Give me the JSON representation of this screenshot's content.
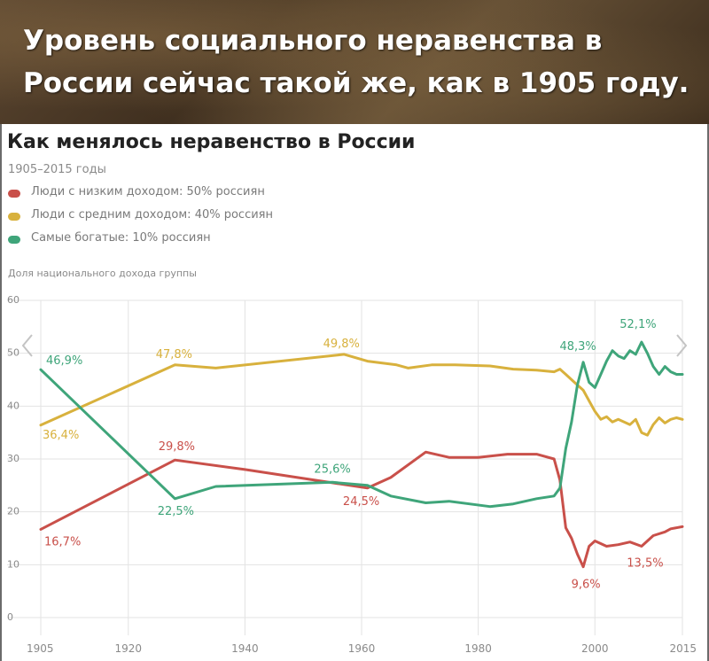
{
  "banner": {
    "line1": "Уровень социального неравенства в",
    "line2": "России сейчас такой же, как в 1905 году."
  },
  "colors": {
    "low_income": "#c9504a",
    "middle_income": "#d8b13d",
    "richest": "#3fa57a",
    "grid": "#e3e3e3",
    "axis_text": "#8a8a8a"
  },
  "chart_data": {
    "type": "line",
    "title": "Как менялось неравенство в России",
    "subtitle": "1905–2015 годы",
    "ylabel": "Доля национального дохода группы",
    "xlim": [
      1905,
      2015
    ],
    "ylim": [
      0,
      60
    ],
    "grid": true,
    "legend_position": "top-left",
    "x_ticks": [
      1905,
      1920,
      1940,
      1960,
      1980,
      2000,
      2015
    ],
    "y_ticks": [
      0,
      10,
      20,
      30,
      40,
      50,
      60
    ],
    "series": [
      {
        "name": "Люди с низким доходом: 50% россиян",
        "color_key": "low_income",
        "points": [
          [
            1905,
            16.7
          ],
          [
            1928,
            29.8
          ],
          [
            1940,
            28.0
          ],
          [
            1955,
            25.5
          ],
          [
            1961,
            24.5
          ],
          [
            1965,
            26.5
          ],
          [
            1971,
            31.3
          ],
          [
            1975,
            30.3
          ],
          [
            1980,
            30.3
          ],
          [
            1985,
            30.9
          ],
          [
            1990,
            30.9
          ],
          [
            1993,
            30.0
          ],
          [
            1994,
            26.0
          ],
          [
            1995,
            17.0
          ],
          [
            1996,
            15.0
          ],
          [
            1997,
            12.0
          ],
          [
            1998,
            9.6
          ],
          [
            1999,
            13.5
          ],
          [
            2000,
            14.5
          ],
          [
            2002,
            13.5
          ],
          [
            2004,
            13.8
          ],
          [
            2006,
            14.3
          ],
          [
            2008,
            13.5
          ],
          [
            2010,
            15.5
          ],
          [
            2012,
            16.2
          ],
          [
            2013,
            16.8
          ],
          [
            2015,
            17.2
          ]
        ]
      },
      {
        "name": "Люди с средним доходом: 40% россиян",
        "color_key": "middle_income",
        "points": [
          [
            1905,
            36.4
          ],
          [
            1928,
            47.8
          ],
          [
            1935,
            47.2
          ],
          [
            1957,
            49.8
          ],
          [
            1961,
            48.5
          ],
          [
            1966,
            47.8
          ],
          [
            1968,
            47.2
          ],
          [
            1972,
            47.8
          ],
          [
            1976,
            47.8
          ],
          [
            1982,
            47.6
          ],
          [
            1986,
            47.0
          ],
          [
            1990,
            46.8
          ],
          [
            1993,
            46.5
          ],
          [
            1994,
            47.0
          ],
          [
            1995,
            46.0
          ],
          [
            1996,
            45.0
          ],
          [
            1997,
            44.0
          ],
          [
            1998,
            43.0
          ],
          [
            1999,
            41.0
          ],
          [
            2000,
            39.0
          ],
          [
            2001,
            37.5
          ],
          [
            2002,
            38.0
          ],
          [
            2003,
            37.0
          ],
          [
            2004,
            37.5
          ],
          [
            2005,
            37.0
          ],
          [
            2006,
            36.5
          ],
          [
            2007,
            37.5
          ],
          [
            2008,
            35.0
          ],
          [
            2009,
            34.5
          ],
          [
            2010,
            36.5
          ],
          [
            2011,
            37.8
          ],
          [
            2012,
            36.8
          ],
          [
            2013,
            37.5
          ],
          [
            2014,
            37.8
          ],
          [
            2015,
            37.5
          ]
        ]
      },
      {
        "name": "Самые богатые: 10% россиян",
        "color_key": "richest",
        "points": [
          [
            1905,
            46.9
          ],
          [
            1928,
            22.5
          ],
          [
            1935,
            24.8
          ],
          [
            1955,
            25.6
          ],
          [
            1961,
            25.0
          ],
          [
            1965,
            23.0
          ],
          [
            1971,
            21.7
          ],
          [
            1975,
            22.0
          ],
          [
            1982,
            21.0
          ],
          [
            1986,
            21.5
          ],
          [
            1990,
            22.5
          ],
          [
            1993,
            23.0
          ],
          [
            1994,
            24.5
          ],
          [
            1995,
            32.0
          ],
          [
            1996,
            37.0
          ],
          [
            1997,
            44.0
          ],
          [
            1998,
            48.3
          ],
          [
            1999,
            44.5
          ],
          [
            2000,
            43.5
          ],
          [
            2001,
            46.0
          ],
          [
            2002,
            48.5
          ],
          [
            2003,
            50.5
          ],
          [
            2004,
            49.5
          ],
          [
            2005,
            49.0
          ],
          [
            2006,
            50.5
          ],
          [
            2007,
            49.8
          ],
          [
            2008,
            52.1
          ],
          [
            2009,
            50.0
          ],
          [
            2010,
            47.5
          ],
          [
            2011,
            46.0
          ],
          [
            2012,
            47.5
          ],
          [
            2013,
            46.5
          ],
          [
            2014,
            46.0
          ],
          [
            2015,
            46.0
          ]
        ]
      }
    ],
    "annotations": [
      {
        "text": "46,9%",
        "series": "richest",
        "x": 1905,
        "y": 46.9
      },
      {
        "text": "36,4%",
        "series": "middle_income",
        "x": 1905,
        "y": 36.4
      },
      {
        "text": "16,7%",
        "series": "low_income",
        "x": 1905,
        "y": 16.7
      },
      {
        "text": "47,8%",
        "series": "middle_income",
        "x": 1928,
        "y": 47.8
      },
      {
        "text": "29,8%",
        "series": "low_income",
        "x": 1928,
        "y": 29.8
      },
      {
        "text": "22,5%",
        "series": "richest",
        "x": 1928,
        "y": 22.5
      },
      {
        "text": "49,8%",
        "series": "middle_income",
        "x": 1957,
        "y": 49.8
      },
      {
        "text": "25,6%",
        "series": "richest",
        "x": 1955,
        "y": 25.6
      },
      {
        "text": "24,5%",
        "series": "low_income",
        "x": 1961,
        "y": 24.5
      },
      {
        "text": "48,3%",
        "series": "richest",
        "x": 1998,
        "y": 48.3
      },
      {
        "text": "52,1%",
        "series": "richest",
        "x": 2008,
        "y": 52.1
      },
      {
        "text": "9,6%",
        "series": "low_income",
        "x": 1998,
        "y": 9.6
      },
      {
        "text": "13,5%",
        "series": "low_income",
        "x": 2008,
        "y": 13.5
      }
    ]
  }
}
